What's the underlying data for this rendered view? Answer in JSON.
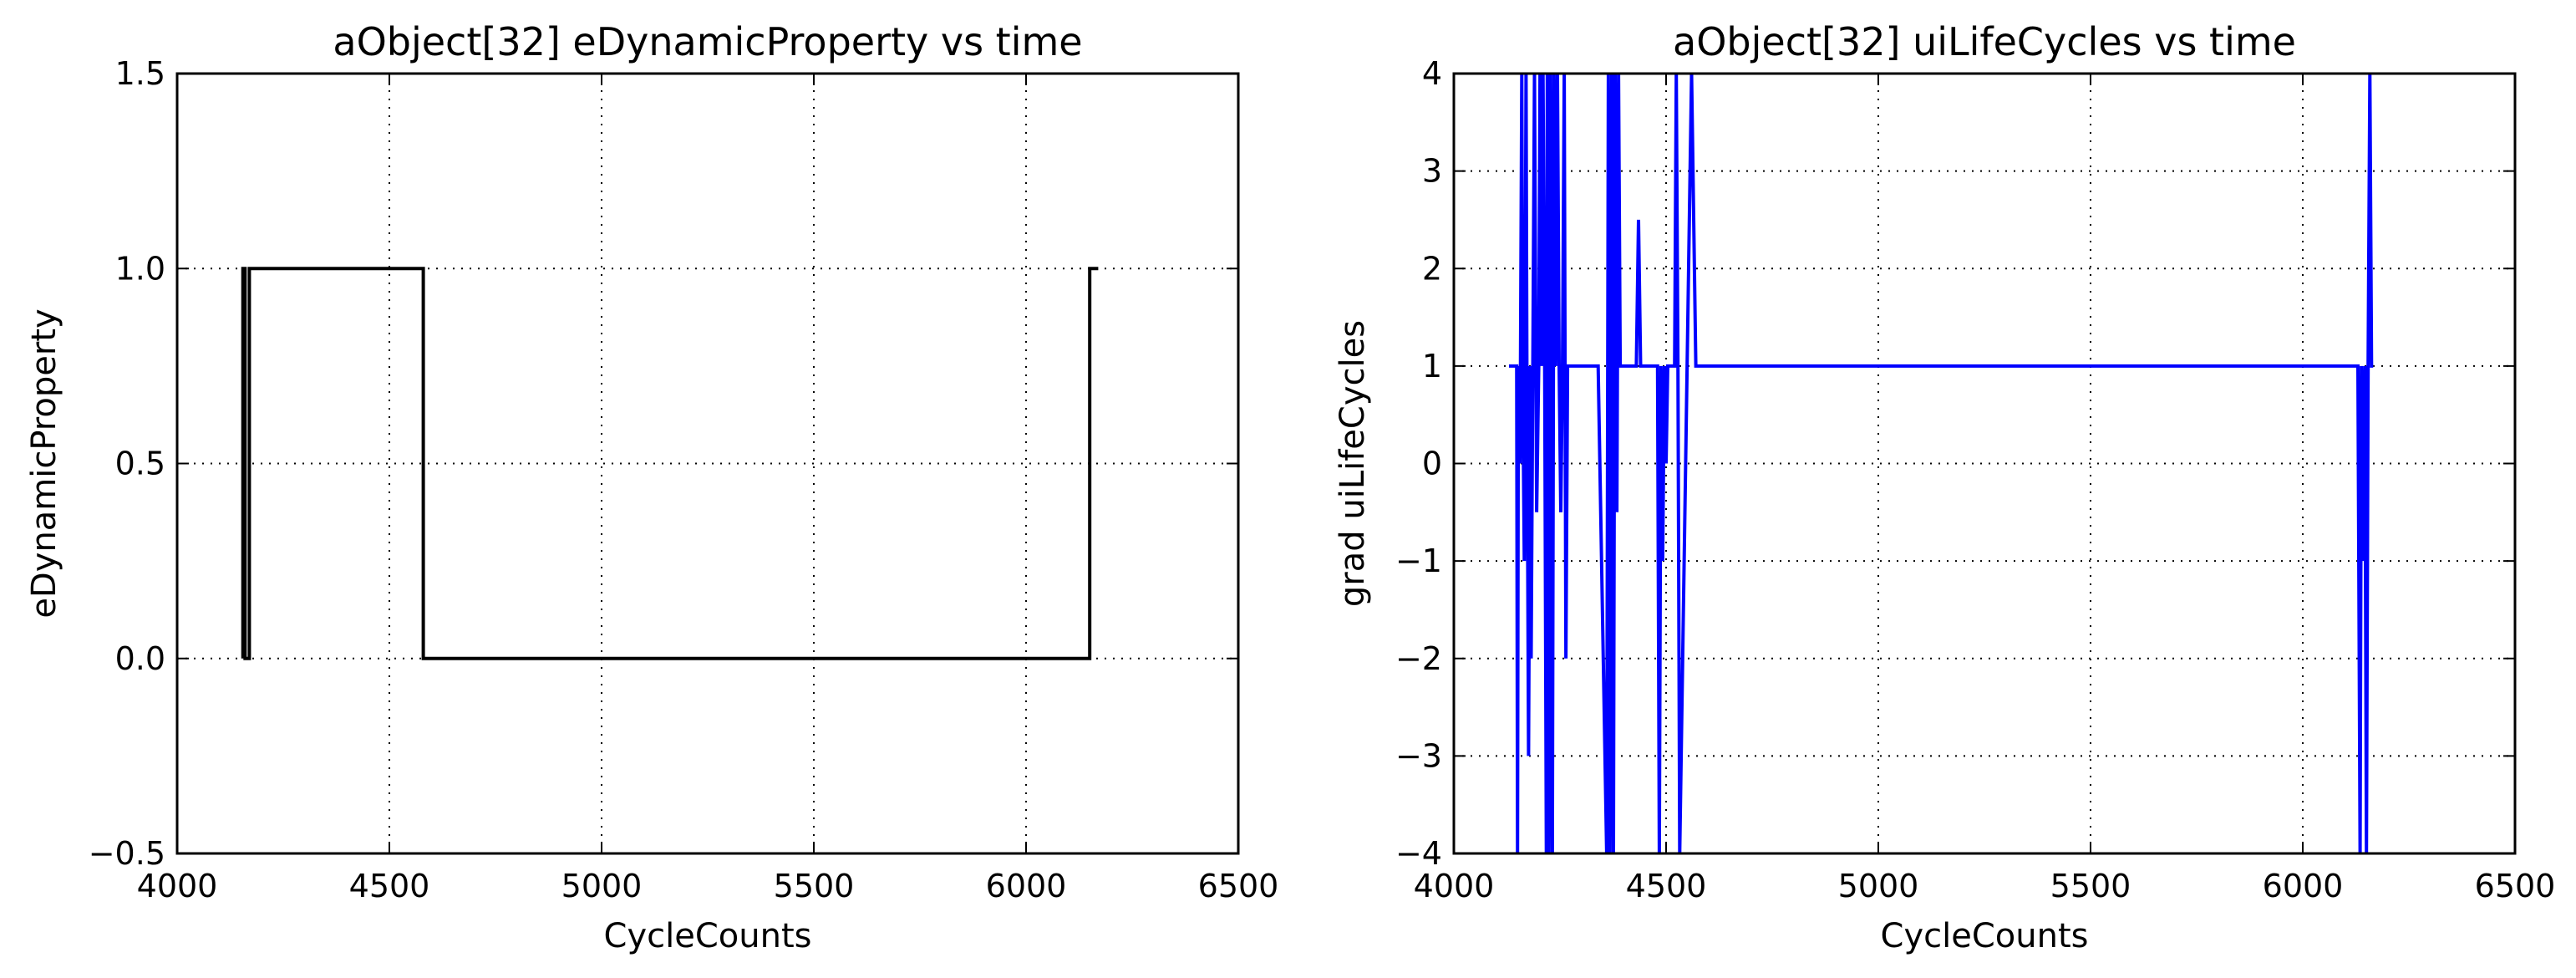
{
  "chart_data": [
    {
      "type": "line",
      "title": "aObject[32] eDynamicProperty vs time",
      "xlabel": "CycleCounts",
      "ylabel": "eDynamicProperty",
      "xlim": [
        4000,
        6500
      ],
      "ylim": [
        -0.5,
        1.5
      ],
      "xticks": [
        "4000",
        "4500",
        "5000",
        "5500",
        "6000",
        "6500"
      ],
      "yticks": [
        "−0.5",
        "0.0",
        "0.5",
        "1.0",
        "1.5"
      ],
      "grid": true,
      "line_color": "#000000",
      "series": [
        {
          "x": [
            4155,
            4155,
            4160,
            4160,
            4170,
            4170,
            4177,
            4177,
            4580,
            4580,
            6150,
            6150,
            6170
          ],
          "y": [
            0,
            1,
            1,
            0,
            0,
            1,
            1,
            1,
            1,
            0,
            0,
            1,
            1
          ]
        }
      ]
    },
    {
      "type": "line",
      "title": "aObject[32] uiLifeCycles vs time",
      "xlabel": "CycleCounts",
      "ylabel": "grad uiLifeCycles",
      "xlim": [
        4000,
        6500
      ],
      "ylim": [
        -4,
        4
      ],
      "xticks": [
        "4000",
        "4500",
        "5000",
        "5500",
        "6000",
        "6500"
      ],
      "yticks": [
        "−4",
        "−3",
        "−2",
        "−1",
        "0",
        "1",
        "2",
        "3",
        "4"
      ],
      "grid": true,
      "line_color": "#0000ff",
      "series": [
        {
          "x": [
            4130,
            4148,
            4150,
            4152,
            4156,
            4160,
            4162,
            4166,
            4170,
            4172,
            4176,
            4180,
            4182,
            4186,
            4190,
            4195,
            4200,
            4203,
            4207,
            4210,
            4214,
            4218,
            4220,
            4224,
            4228,
            4232,
            4236,
            4240,
            4244,
            4248,
            4252,
            4256,
            4260,
            4264,
            4268,
            4272,
            4276,
            4280,
            4290,
            4300,
            4340,
            4360,
            4364,
            4368,
            4372,
            4376,
            4380,
            4384,
            4388,
            4392,
            4400,
            4430,
            4435,
            4440,
            4450,
            4480,
            4484,
            4488,
            4492,
            4496,
            4500,
            4504,
            4508,
            4520,
            4524,
            4528,
            4532,
            4560,
            4570,
            4575,
            4580,
            4590,
            6130,
            6135,
            6138,
            6142,
            6146,
            6150,
            6154,
            6158,
            6162,
            6166
          ],
          "y": [
            1,
            1,
            -4,
            1,
            0,
            4,
            1,
            -1,
            4,
            1,
            -3,
            1,
            -2,
            1,
            4,
            -0.5,
            1,
            4,
            1,
            4,
            1,
            -4,
            4,
            -4,
            4,
            -4,
            4,
            1,
            4,
            1,
            -0.5,
            1,
            4,
            -2,
            1,
            1,
            1,
            1,
            1,
            1,
            1,
            -4,
            4,
            -4,
            4,
            -4,
            4,
            -0.5,
            4,
            1,
            1,
            1,
            2.5,
            1,
            1,
            1,
            -4,
            1,
            -1,
            1,
            0,
            1,
            1,
            1,
            4,
            1,
            -4,
            4,
            1,
            1,
            1,
            1,
            1,
            -4,
            1,
            -1,
            1,
            -4,
            1,
            4,
            1,
            1
          ]
        }
      ]
    }
  ]
}
